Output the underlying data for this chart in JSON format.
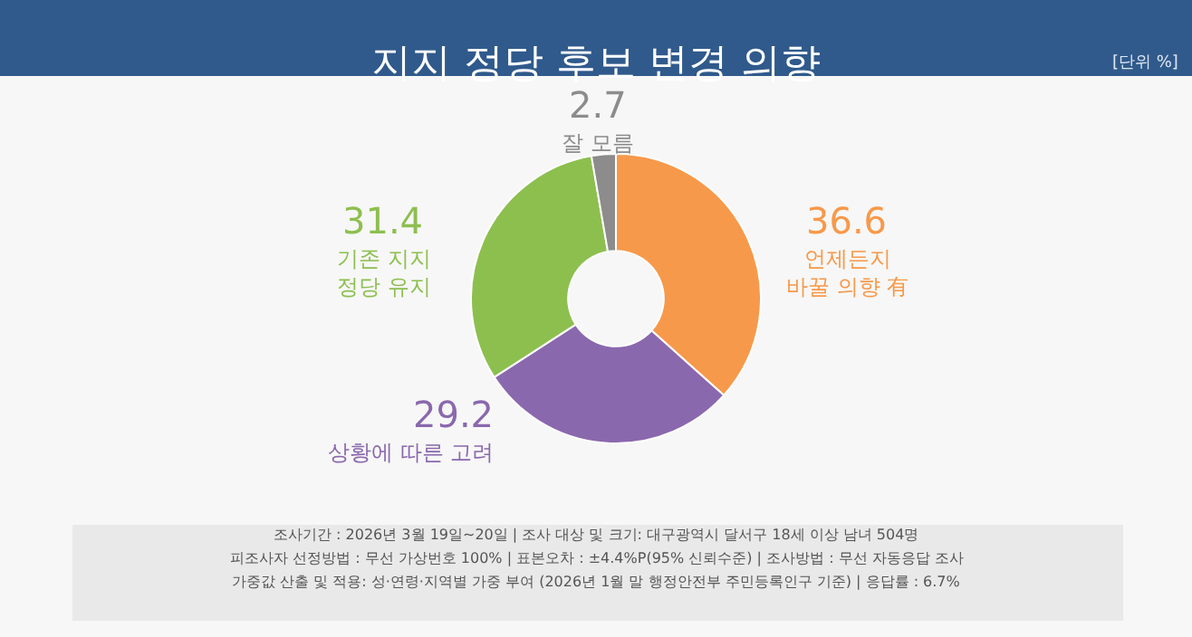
{
  "chart_data": {
    "type": "donut",
    "title": "지지 정당 후보 변경 의향",
    "subtitle": "[단위 %]",
    "categories": [
      "언제든지\n바꿀 의향 有",
      "상황에 따른 고려",
      "기존 지지\n정당 유지",
      "잘 모름"
    ],
    "values": [
      36.6,
      29.2,
      31.4,
      2.7
    ],
    "colors": [
      "#f7994a",
      "#8a68ad",
      "#8dbf4f",
      "#8c8c8c"
    ],
    "data_labels": true,
    "legend": false,
    "annotations": [
      "조사기간 : 2026년 3월 19일~20일 | 조사 대상 및 크기: 대구광역시 달서구 18세 이상 남녀 504명",
      "피조사자 선정방법 : 무선 가상번호 100% | 표본오차 : ±4.4%P(95% 신뢰수준) | 조사방법 : 무선 자동응답 조사",
      "가중값 산출 및 적용: 성·연령·지역별 가중 부여 (2026년 1월 말 행정안전부 주민등록인구 기준) | 응답률 : 6.7%"
    ]
  }
}
